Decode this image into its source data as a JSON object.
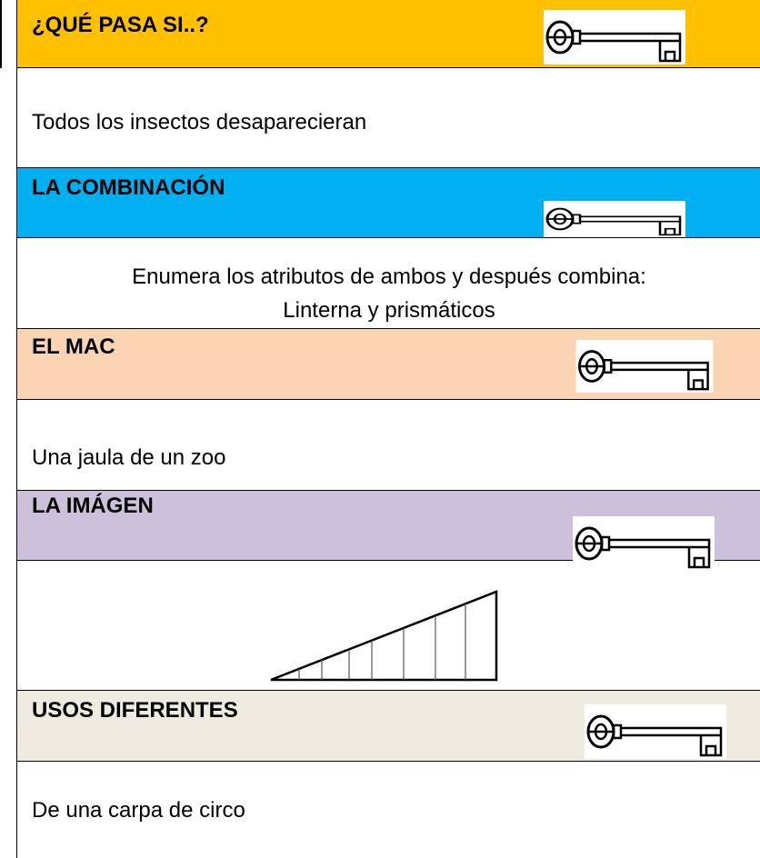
{
  "sections": [
    {
      "title": "¿QUÉ PASA SI..?",
      "body": [
        "Todos los insectos desaparecieran"
      ]
    },
    {
      "title": "LA COMBINACIÓN",
      "body": [
        "Enumera los atributos de ambos y después combina:",
        "Linterna y prismáticos"
      ]
    },
    {
      "title": "EL MAC",
      "body": [
        "Una jaula de un zoo"
      ]
    },
    {
      "title": "LA IMÁGEN"
    },
    {
      "title": "USOS DIFERENTES",
      "body": [
        "De una carpa de circo"
      ]
    }
  ]
}
